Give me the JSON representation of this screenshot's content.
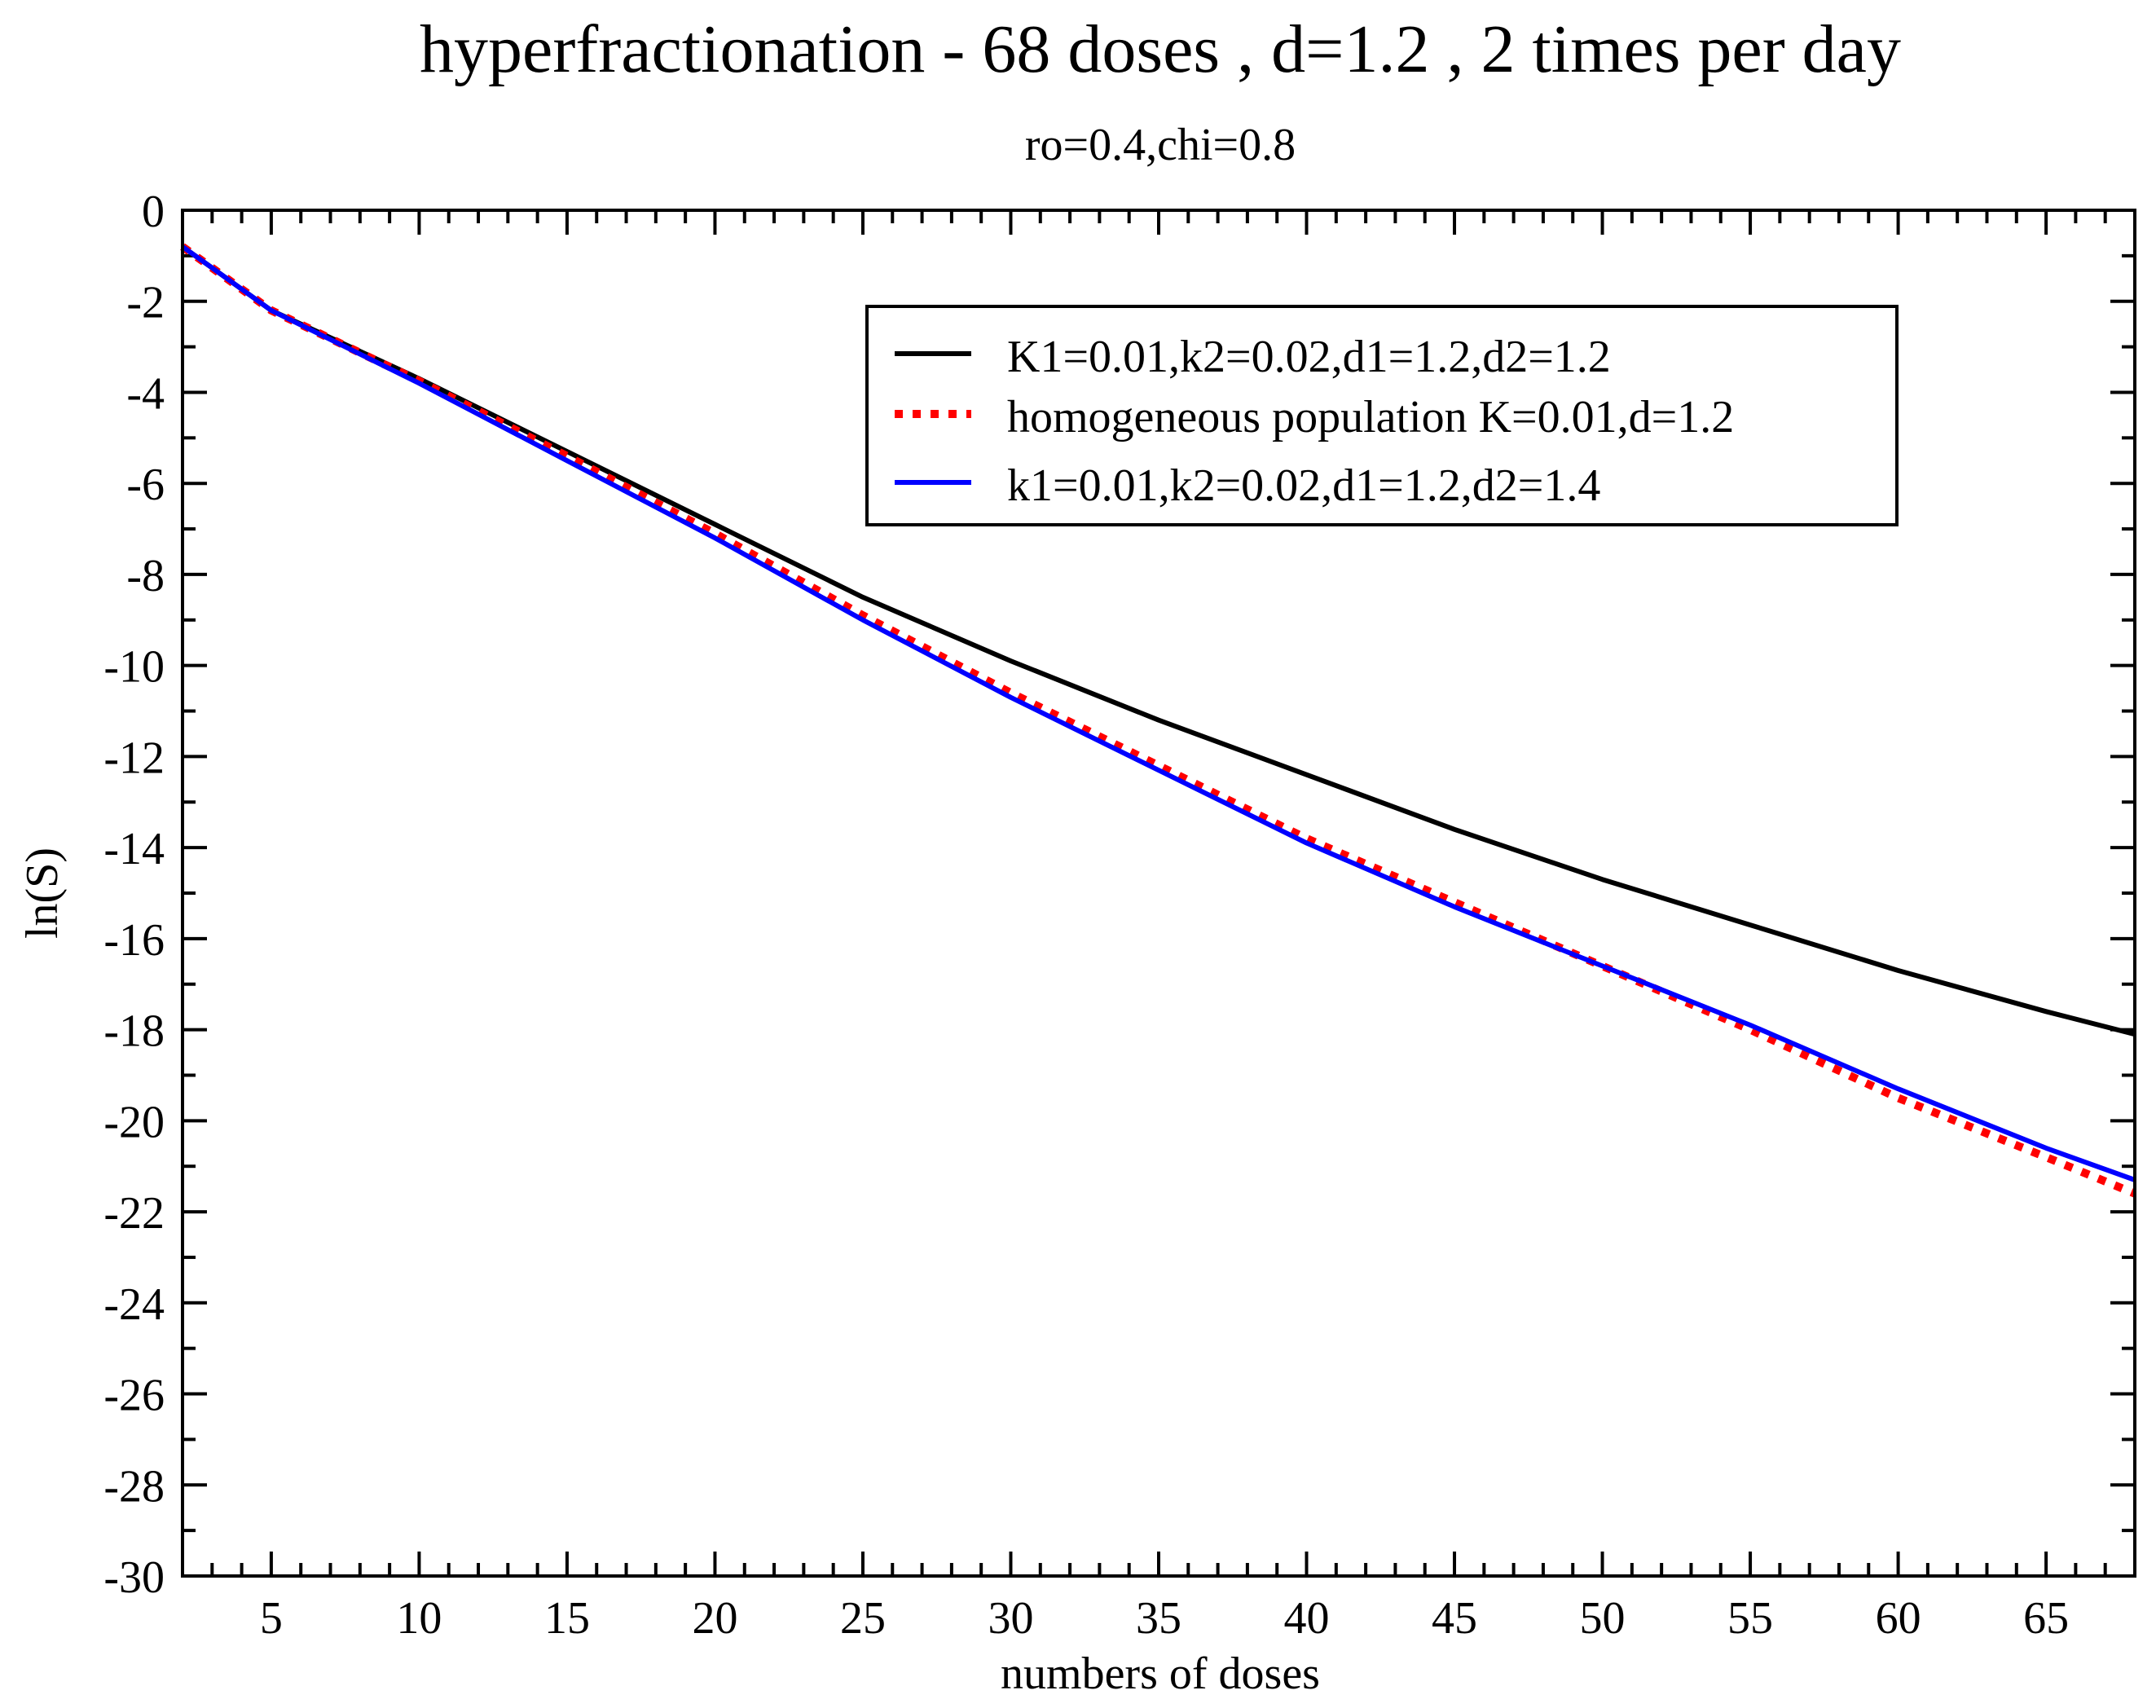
{
  "chart_data": {
    "type": "line",
    "title": "hyperfractionation - 68 doses , d=1.2 , 2 times per day",
    "subtitle": "ro=0.4,chi=0.8",
    "xlabel": "numbers of doses",
    "ylabel": "ln(S)",
    "xlim": [
      2,
      68
    ],
    "ylim": [
      -30,
      0
    ],
    "xticks": [
      5,
      10,
      15,
      20,
      25,
      30,
      35,
      40,
      45,
      50,
      55,
      60,
      65
    ],
    "yticks": [
      0,
      -2,
      -4,
      -6,
      -8,
      -10,
      -12,
      -14,
      -16,
      -18,
      -20,
      -22,
      -24,
      -26,
      -28,
      -30
    ],
    "xtick_labels": [
      "5",
      "10",
      "15",
      "20",
      "25",
      "30",
      "35",
      "40",
      "45",
      "50",
      "55",
      "60",
      "65"
    ],
    "ytick_labels": [
      "0",
      "-2",
      "-4",
      "-6",
      "-8",
      "-10",
      "-12",
      "-14",
      "-16",
      "-18",
      "-20",
      "-22",
      "-24",
      "-26",
      "-28",
      "-30"
    ],
    "legend_position": "top-right",
    "series": [
      {
        "name": "K1=0.01,k2=0.02,d1=1.2,d2=1.2",
        "color": "#000000",
        "style": "solid",
        "x": [
          2,
          5,
          10,
          15,
          20,
          25,
          30,
          35,
          40,
          45,
          50,
          55,
          60,
          65,
          68
        ],
        "y": [
          -0.8,
          -2.2,
          -3.7,
          -5.3,
          -6.9,
          -8.5,
          -9.9,
          -11.2,
          -12.4,
          -13.6,
          -14.7,
          -15.7,
          -16.7,
          -17.6,
          -18.1
        ]
      },
      {
        "name": "homogeneous population K=0.01,d=1.2",
        "color": "#ff0000",
        "style": "dotted",
        "x": [
          2,
          5,
          10,
          15,
          20,
          25,
          30,
          35,
          40,
          45,
          50,
          55,
          60,
          65,
          68
        ],
        "y": [
          -0.8,
          -2.2,
          -3.75,
          -5.4,
          -7.1,
          -8.9,
          -10.6,
          -12.2,
          -13.8,
          -15.2,
          -16.6,
          -18.0,
          -19.5,
          -20.8,
          -21.6
        ]
      },
      {
        "name": "k1=0.01,k2=0.02,d1=1.2,d2=1.4",
        "color": "#0000ff",
        "style": "solid",
        "x": [
          2,
          5,
          10,
          15,
          20,
          25,
          30,
          35,
          40,
          45,
          50,
          55,
          60,
          65,
          68
        ],
        "y": [
          -0.8,
          -2.2,
          -3.8,
          -5.5,
          -7.2,
          -9.0,
          -10.7,
          -12.3,
          -13.9,
          -15.3,
          -16.6,
          -17.9,
          -19.3,
          -20.6,
          -21.3
        ]
      }
    ]
  }
}
